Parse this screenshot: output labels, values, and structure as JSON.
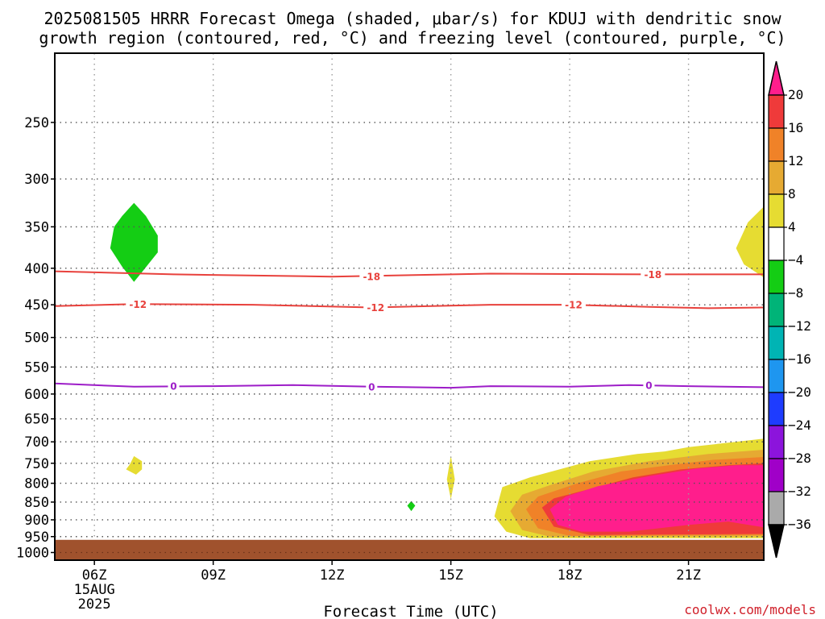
{
  "title": {
    "line1": "2025081505 HRRR Forecast Omega (shaded, μbar/s) for KDUJ with dendritic snow",
    "line2": "growth region (contoured, red, °C) and freezing level (contoured, purple, °C)"
  },
  "credit": "coolwx.com/models",
  "chart_data": {
    "type": "time-height cross section",
    "xlabel": "Forecast Time (UTC)",
    "x_ticks": [
      "06Z",
      "09Z",
      "12Z",
      "15Z",
      "18Z",
      "21Z"
    ],
    "x_tick_hours": [
      6,
      9,
      12,
      15,
      18,
      21
    ],
    "x_date_label": [
      "15AUG",
      "2025"
    ],
    "xlim_hours": [
      5,
      22.9
    ],
    "y_ticks": [
      250,
      300,
      350,
      400,
      450,
      500,
      550,
      600,
      650,
      700,
      750,
      800,
      850,
      900,
      950,
      1000
    ],
    "ylim_hpa": [
      200,
      1025
    ],
    "y_scale": "log pressure (inverted)",
    "ground_top_hpa": 960,
    "ground_color": "#a0522d",
    "grid": true,
    "colorbar": {
      "labels": [
        "20",
        "16",
        "12",
        "8",
        "4",
        "−4",
        "−8",
        "−12",
        "−16",
        "−20",
        "−24",
        "−28",
        "−32",
        "−36"
      ],
      "colors": [
        "#ff1e8c",
        "#ef3a3a",
        "#f08228",
        "#e6aa32",
        "#e6dc32",
        "#ffffff",
        "#14cd14",
        "#00b478",
        "#00b4b4",
        "#1e96f0",
        "#1e3cff",
        "#8c14dc",
        "#a000c8",
        "#aaaaaa",
        "#000000"
      ]
    },
    "contours": [
      {
        "name": "-18",
        "color": "#e8413c",
        "points": [
          [
            5,
            404
          ],
          [
            8,
            408
          ],
          [
            12,
            411
          ],
          [
            16,
            407
          ],
          [
            20,
            408
          ],
          [
            22.9,
            408
          ]
        ]
      },
      {
        "name": "-12",
        "color": "#e8413c",
        "points": [
          [
            5,
            452
          ],
          [
            7,
            449
          ],
          [
            10,
            450
          ],
          [
            13,
            454
          ],
          [
            16,
            450
          ],
          [
            18,
            450
          ],
          [
            20,
            453
          ],
          [
            21.5,
            455
          ],
          [
            22.9,
            454
          ]
        ]
      },
      {
        "name": "0",
        "color": "#9d1dc8",
        "points": [
          [
            5,
            580
          ],
          [
            7,
            586
          ],
          [
            9,
            585
          ],
          [
            11,
            583
          ],
          [
            13,
            586
          ],
          [
            15,
            588
          ],
          [
            16,
            585
          ],
          [
            18,
            586
          ],
          [
            19.5,
            583
          ],
          [
            21,
            585
          ],
          [
            22.9,
            587
          ]
        ]
      }
    ],
    "contour_labels": [
      {
        "text": "-18",
        "x": 13.0,
        "p": 411,
        "color": "#e8413c"
      },
      {
        "text": "-18",
        "x": 20.1,
        "p": 408,
        "color": "#e8413c"
      },
      {
        "text": "-12",
        "x": 7.1,
        "p": 449,
        "color": "#e8413c"
      },
      {
        "text": "-12",
        "x": 13.1,
        "p": 454,
        "color": "#e8413c"
      },
      {
        "text": "-12",
        "x": 18.1,
        "p": 450,
        "color": "#e8413c"
      },
      {
        "text": "0",
        "x": 8.0,
        "p": 585,
        "color": "#9d1dc8"
      },
      {
        "text": "0",
        "x": 13.0,
        "p": 586,
        "color": "#9d1dc8"
      },
      {
        "text": "0",
        "x": 20.0,
        "p": 583,
        "color": "#9d1dc8"
      }
    ],
    "omega_regions": [
      {
        "name": "upward-green-350",
        "level": "-8",
        "color": "#14cd14",
        "points": [
          [
            6.5,
            350
          ],
          [
            6.7,
            338
          ],
          [
            7.0,
            324
          ],
          [
            7.3,
            338
          ],
          [
            7.6,
            360
          ],
          [
            7.6,
            380
          ],
          [
            7.2,
            405
          ],
          [
            7.0,
            418
          ],
          [
            6.7,
            398
          ],
          [
            6.4,
            375
          ]
        ]
      },
      {
        "name": "downward-yellow-750",
        "level": "4",
        "color": "#e6dc32",
        "points": [
          [
            6.9,
            752
          ],
          [
            7.0,
            733
          ],
          [
            7.2,
            745
          ],
          [
            7.2,
            765
          ],
          [
            7.05,
            778
          ],
          [
            6.8,
            765
          ]
        ]
      },
      {
        "name": "upward-green-860",
        "level": "-8",
        "color": "#14cd14",
        "points": [
          [
            13.9,
            860
          ],
          [
            14.0,
            847
          ],
          [
            14.1,
            860
          ],
          [
            14.0,
            875
          ]
        ]
      },
      {
        "name": "downward-yellow-780",
        "level": "4",
        "color": "#e6dc32",
        "points": [
          [
            14.9,
            790
          ],
          [
            15.0,
            732
          ],
          [
            15.1,
            790
          ],
          [
            15.0,
            842
          ]
        ]
      },
      {
        "name": "downward-yellow-350",
        "level": "4",
        "color": "#e6dc32",
        "points": [
          [
            22.9,
            328
          ],
          [
            22.5,
            345
          ],
          [
            22.2,
            375
          ],
          [
            22.4,
            395
          ],
          [
            22.9,
            412
          ]
        ]
      },
      {
        "name": "downward-yellow-large",
        "level": "4",
        "color": "#e6dc32",
        "points": [
          [
            16.1,
            890
          ],
          [
            16.3,
            810
          ],
          [
            17.0,
            785
          ],
          [
            18.5,
            745
          ],
          [
            19.7,
            728
          ],
          [
            20.4,
            722
          ],
          [
            21.0,
            712
          ],
          [
            22.0,
            702
          ],
          [
            22.9,
            693
          ],
          [
            22.9,
            955
          ],
          [
            17.0,
            955
          ],
          [
            16.4,
            935
          ]
        ]
      },
      {
        "name": "downward-gold-large",
        "level": "8",
        "color": "#e6aa32",
        "points": [
          [
            16.5,
            875
          ],
          [
            16.8,
            830
          ],
          [
            17.5,
            805
          ],
          [
            18.6,
            770
          ],
          [
            20.0,
            745
          ],
          [
            21.5,
            728
          ],
          [
            22.9,
            718
          ],
          [
            22.9,
            950
          ],
          [
            17.5,
            950
          ],
          [
            16.8,
            930
          ]
        ]
      },
      {
        "name": "downward-orange-large",
        "level": "12",
        "color": "#f08228",
        "points": [
          [
            16.9,
            870
          ],
          [
            17.2,
            835
          ],
          [
            18.2,
            800
          ],
          [
            19.3,
            770
          ],
          [
            20.5,
            755
          ],
          [
            21.6,
            742
          ],
          [
            22.9,
            735
          ],
          [
            22.9,
            945
          ],
          [
            18.0,
            948
          ],
          [
            17.2,
            925
          ]
        ]
      },
      {
        "name": "downward-red-large",
        "level": "16",
        "color": "#ef3a3a",
        "points": [
          [
            17.3,
            865
          ],
          [
            17.6,
            840
          ],
          [
            18.5,
            815
          ],
          [
            19.6,
            785
          ],
          [
            20.8,
            765
          ],
          [
            22.0,
            755
          ],
          [
            22.9,
            750
          ],
          [
            22.9,
            942
          ],
          [
            18.5,
            945
          ],
          [
            17.6,
            920
          ]
        ]
      },
      {
        "name": "downward-magenta-large",
        "level": "20",
        "color": "#ff1e8c",
        "points": [
          [
            17.5,
            870
          ],
          [
            17.9,
            835
          ],
          [
            18.7,
            808
          ],
          [
            20.0,
            782
          ],
          [
            21.2,
            763
          ],
          [
            22.2,
            755
          ],
          [
            22.9,
            755
          ],
          [
            22.9,
            922
          ],
          [
            22.0,
            905
          ],
          [
            21.0,
            915
          ],
          [
            19.5,
            935
          ],
          [
            18.3,
            935
          ],
          [
            17.7,
            915
          ]
        ]
      }
    ]
  }
}
